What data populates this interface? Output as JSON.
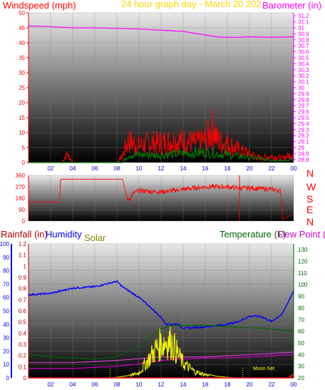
{
  "header": {
    "windspeed_label": "Windspeed (mph)",
    "date_label": "24 hour graph day - March 20 202",
    "barometer_label": "Barometer (in)",
    "rainfall_label": "Rainfall (in)",
    "humidity_label": "Humidity",
    "solar_label": "Solar",
    "temperature_label": "Temperature (F)",
    "dewpoint_label": "Dew Point (",
    "moonset_label": "Moon Set"
  },
  "colors": {
    "windspeed": "#ff0000",
    "wind_avg": "#008000",
    "barometer": "#ff00ff",
    "date": "#ffd700",
    "rainfall": "#b00000",
    "humidity": "#0000ff",
    "solar": "#ffff00",
    "solar_label": "#808000",
    "temperature": "#006400",
    "dewpoint": "#cc00cc",
    "dew_line": "#cc44cc",
    "direction": "#ff0000",
    "axis_left_blue": "#0000ff",
    "axis_right_green": "#006400"
  },
  "chart_data": [
    {
      "type": "line",
      "name": "wind-and-barometer",
      "x_ticks": [
        "02",
        "04",
        "06",
        "08",
        "10",
        "12",
        "14",
        "16",
        "18",
        "20",
        "22",
        "00"
      ],
      "y_left": {
        "label": "Windspeed (mph)",
        "ticks": [
          0,
          5,
          10,
          15,
          20,
          25,
          30,
          35,
          40,
          45,
          50
        ],
        "range": [
          0,
          50
        ]
      },
      "y_right": {
        "label": "Barometer (in)",
        "ticks": [
          "28.8",
          "28.9",
          "29",
          "29.1",
          "29.2",
          "29.3",
          "29.4",
          "29.5",
          "29.6",
          "29.7",
          "29.8",
          "29.9",
          "30",
          "30.1",
          "30.2",
          "30.3",
          "30.4",
          "30.5",
          "30.6",
          "30.7",
          "30.8",
          "30.9",
          "31",
          "31.1",
          "31.2"
        ],
        "range": [
          28.75,
          31.25
        ]
      },
      "series": [
        {
          "name": "Barometer (in)",
          "axis": "right",
          "x": [
            0,
            2,
            4,
            6,
            8,
            10,
            12,
            14,
            16,
            17,
            18,
            19,
            20,
            22,
            24
          ],
          "values": [
            31.03,
            31.02,
            31.0,
            31.0,
            30.99,
            30.98,
            30.96,
            30.94,
            30.88,
            30.85,
            30.84,
            30.84,
            30.85,
            30.84,
            30.85
          ]
        },
        {
          "name": "Windspeed (mph)",
          "axis": "left",
          "x": [
            0,
            3,
            3.5,
            4,
            6,
            8,
            8.5,
            9,
            10,
            11,
            12,
            13,
            14,
            15,
            16,
            16.8,
            17,
            17.5,
            18,
            19,
            20,
            21,
            22,
            23,
            24
          ],
          "values": [
            0,
            0,
            4,
            0,
            0,
            0,
            3,
            10,
            8,
            9,
            9,
            10,
            10,
            9,
            10,
            17,
            11,
            9,
            9,
            6,
            4,
            2,
            3,
            2,
            4
          ]
        },
        {
          "name": "Wind average",
          "axis": "left",
          "x": [
            0,
            8.5,
            9,
            12,
            16,
            18,
            20,
            22,
            24
          ],
          "values": [
            0,
            0,
            3,
            3,
            4,
            3,
            2,
            1,
            1
          ]
        }
      ]
    },
    {
      "type": "scatter",
      "name": "wind-direction",
      "x_ticks": [],
      "y_left": {
        "ticks": [
          0,
          90,
          180,
          270,
          360
        ],
        "range": [
          0,
          360
        ]
      },
      "y_right": {
        "ticks": [
          "N",
          "W",
          "S",
          "E",
          "N"
        ]
      },
      "series": [
        {
          "name": "Wind direction",
          "x": [
            0,
            2.8,
            2.9,
            8.5,
            9.0,
            9.5,
            10,
            12,
            14,
            16,
            18,
            19,
            20,
            22,
            22.8,
            23,
            24
          ],
          "values": [
            150,
            150,
            330,
            330,
            160,
            220,
            240,
            230,
            250,
            270,
            270,
            260,
            260,
            250,
            240,
            10,
            60
          ]
        }
      ]
    },
    {
      "type": "line",
      "name": "temperature-humidity-solar",
      "x_ticks": [
        "02",
        "04",
        "06",
        "08",
        "10",
        "12",
        "14",
        "16",
        "18",
        "20",
        "22",
        "00"
      ],
      "y_left_rain": {
        "label": "Rainfall (in)",
        "ticks": [
          0,
          10,
          20,
          30,
          40,
          50,
          60,
          70,
          80,
          90,
          100
        ],
        "range": [
          0,
          100
        ]
      },
      "y_left_humidity": {
        "label": "Humidity",
        "ticks": [
          "0",
          "0.1",
          "0.2",
          "0.3",
          "0.4",
          "0.5",
          "0.6",
          "0.7",
          "0.8",
          "0.9",
          "1",
          "1.1",
          "1.2"
        ],
        "range": [
          0,
          1.2
        ]
      },
      "y_right": {
        "label": "Temperature (F)",
        "ticks": [
          20,
          30,
          40,
          50,
          60,
          70,
          80,
          90,
          100,
          110,
          120,
          130
        ],
        "range": [
          20,
          135
        ]
      },
      "series": [
        {
          "name": "Humidity",
          "axis": "humidity_pct",
          "x": [
            0,
            2,
            3,
            4,
            6,
            7,
            8,
            8.5,
            10,
            11,
            12,
            12.5,
            13.5,
            14,
            16,
            18,
            19,
            20,
            21,
            22,
            23,
            24
          ],
          "values": [
            62,
            63,
            65,
            67,
            68,
            70,
            72,
            68,
            60,
            53,
            45,
            40,
            40,
            37,
            38,
            40,
            42,
            46,
            46,
            42,
            48,
            65
          ]
        },
        {
          "name": "Temperature (F)",
          "axis": "right",
          "x": [
            0,
            2,
            4,
            6,
            8,
            10,
            11,
            12,
            13,
            14,
            16,
            18,
            20,
            22,
            24
          ],
          "values": [
            40,
            38,
            37,
            36,
            38,
            47,
            55,
            62,
            65,
            65,
            65,
            64,
            63,
            62,
            60
          ]
        },
        {
          "name": "Dew Point",
          "axis": "right",
          "x": [
            0,
            2,
            4,
            6,
            8,
            10,
            12,
            14,
            16,
            18,
            20,
            22,
            24
          ],
          "values": [
            28,
            28,
            28,
            29,
            30,
            32,
            35,
            36,
            37,
            37,
            38,
            39,
            40
          ]
        },
        {
          "name": "Dew Point 2",
          "axis": "right",
          "x": [
            0,
            4,
            8,
            12,
            16,
            20,
            24
          ],
          "values": [
            33,
            33,
            35,
            38,
            38,
            40,
            42
          ]
        },
        {
          "name": "Solar",
          "axis": "solar_w",
          "x": [
            0,
            7.5,
            8,
            9,
            10,
            10.5,
            11,
            11.5,
            12,
            12.5,
            13,
            13.5,
            14,
            15,
            16,
            17,
            18,
            19,
            20,
            24
          ],
          "values": [
            0,
            0,
            5,
            20,
            60,
            160,
            250,
            350,
            420,
            460,
            430,
            300,
            180,
            80,
            40,
            15,
            5,
            0,
            0,
            0
          ]
        }
      ]
    }
  ]
}
